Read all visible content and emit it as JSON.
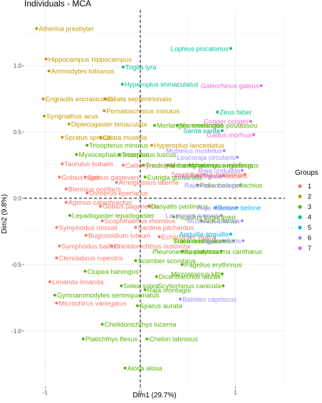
{
  "chart_data": {
    "type": "scatter",
    "title": "Individuals - MCA",
    "xlabel": "Dim1 (29.7%)",
    "ylabel": "Dim2 (9.8%)",
    "xlim": [
      -1.22,
      1.52
    ],
    "ylim": [
      -1.42,
      1.42
    ],
    "x_ticks": [
      -1,
      0,
      1
    ],
    "x_tick_labels": [
      "-1",
      "0",
      "1"
    ],
    "y_ticks": [
      -1.0,
      -0.5,
      0.0,
      0.5,
      1.0
    ],
    "y_tick_labels": [
      "-1.0",
      "-0.5",
      "0.0",
      "0.5",
      "1.0"
    ],
    "grid": true,
    "reference_lines": {
      "x": 0,
      "y": 0,
      "style": "dashed"
    },
    "legend": {
      "title": "Groups",
      "placement": "right",
      "entries": [
        {
          "name": "1",
          "color": "#F8766D"
        },
        {
          "name": "2",
          "color": "#C49A00"
        },
        {
          "name": "3",
          "color": "#53B400"
        },
        {
          "name": "4",
          "color": "#00C094"
        },
        {
          "name": "5",
          "color": "#00B6EB"
        },
        {
          "name": "6",
          "color": "#A58AFF"
        },
        {
          "name": "7",
          "color": "#FB61D7"
        }
      ]
    },
    "points": [
      {
        "label": "Atherina presbyter",
        "x": -1.09,
        "y": 1.28,
        "group": "2"
      },
      {
        "label": "Hippocampus hippocampus",
        "x": -0.99,
        "y": 1.05,
        "group": "2"
      },
      {
        "label": "Ammodytes tobianus",
        "x": -0.96,
        "y": 0.96,
        "group": "2"
      },
      {
        "label": "Triglia lyra",
        "x": -0.18,
        "y": 0.99,
        "group": "4"
      },
      {
        "label": "Hyperoplus immaculatus",
        "x": -0.19,
        "y": 0.86,
        "group": "4"
      },
      {
        "label": "Engraulis encrasicolus",
        "x": -1.02,
        "y": 0.75,
        "group": "2"
      },
      {
        "label": "Ciliata septentrionalis",
        "x": -0.37,
        "y": 0.75,
        "group": "2"
      },
      {
        "label": "Pomatoschistus minutus",
        "x": -0.38,
        "y": 0.66,
        "group": "2"
      },
      {
        "label": "Syngnathus acus",
        "x": -1.01,
        "y": 0.62,
        "group": "2"
      },
      {
        "label": "Diplecogaster bimaculata",
        "x": -0.75,
        "y": 0.56,
        "group": "2"
      },
      {
        "label": "Merlangius merlangus",
        "x": 0.15,
        "y": 0.55,
        "group": "3"
      },
      {
        "label": "Micromesistius poutassou",
        "x": 0.39,
        "y": 0.55,
        "group": "3"
      },
      {
        "label": "Spratus spratus",
        "x": -0.82,
        "y": 0.46,
        "group": "2"
      },
      {
        "label": "Ciliata mustela",
        "x": -0.42,
        "y": 0.46,
        "group": "2"
      },
      {
        "label": "Trisopterus minutus",
        "x": -0.56,
        "y": 0.4,
        "group": "3"
      },
      {
        "label": "Hyperoplus lanceolatus",
        "x": 0.12,
        "y": 0.4,
        "group": "2"
      },
      {
        "label": "Myxocephalus scorpius",
        "x": -0.67,
        "y": 0.33,
        "group": "3"
      },
      {
        "label": "Trisopterus luscus",
        "x": -0.22,
        "y": 0.33,
        "group": "3"
      },
      {
        "label": "Taurulus bubalis",
        "x": -0.82,
        "y": 0.26,
        "group": "1"
      },
      {
        "label": "Callionymus lyra",
        "x": -0.18,
        "y": 0.25,
        "group": "1"
      },
      {
        "label": "Trachurus trachurus",
        "x": 0.03,
        "y": 0.25,
        "group": "3"
      },
      {
        "label": "Melanogrammus aeglefinus",
        "x": 0.29,
        "y": 0.25,
        "group": "3"
      },
      {
        "label": "Merlangius merlangus",
        "x": 0.52,
        "y": 0.25,
        "group": "3"
      },
      {
        "label": "Gobius niger",
        "x": -0.85,
        "y": 0.16,
        "group": "1"
      },
      {
        "label": "Gobius gasteveni",
        "x": -0.58,
        "y": 0.16,
        "group": "1"
      },
      {
        "label": "Arnoglossus laterna",
        "x": -0.25,
        "y": 0.12,
        "group": "1"
      },
      {
        "label": "Eutrigla gurnardus",
        "x": 0.05,
        "y": 0.16,
        "group": "3"
      },
      {
        "label": "Blennius ocellaris",
        "x": -0.78,
        "y": 0.07,
        "group": "1"
      },
      {
        "label": "Osmerus eperlanus",
        "x": -0.56,
        "y": 0.04,
        "group": "1"
      },
      {
        "label": "Agonus cataphractus",
        "x": -0.78,
        "y": -0.03,
        "group": "1"
      },
      {
        "label": "Gobius paganellus",
        "x": -0.42,
        "y": -0.06,
        "group": "1"
      },
      {
        "label": "Dasyatis pastinaca",
        "x": 0.09,
        "y": -0.06,
        "group": "3"
      },
      {
        "label": "Lepadogaster lepadogaster",
        "x": -0.74,
        "y": -0.13,
        "group": "3"
      },
      {
        "label": "Scophthalmus rhombus",
        "x": -0.4,
        "y": -0.17,
        "group": "1"
      },
      {
        "label": "Pagellus bogaraveo",
        "x": 0.35,
        "y": -0.14,
        "group": "3"
      },
      {
        "label": "Symphodus roissali",
        "x": -0.88,
        "y": -0.22,
        "group": "1"
      },
      {
        "label": "Sardina pilchardus",
        "x": -0.05,
        "y": -0.22,
        "group": "1"
      },
      {
        "label": "Buglossidium luteum",
        "x": -0.57,
        "y": -0.28,
        "group": "1"
      },
      {
        "label": "Echiichthys vipera",
        "x": 0.2,
        "y": -0.29,
        "group": "1"
      },
      {
        "label": "Alosa fallax",
        "x": 0.64,
        "y": -0.17,
        "group": "3"
      },
      {
        "label": "Symphodus bailloni",
        "x": -0.85,
        "y": -0.36,
        "group": "1"
      },
      {
        "label": "Chelidonichthys lastoviza",
        "x": -0.3,
        "y": -0.36,
        "group": "1"
      },
      {
        "label": "Spondyliosoma cantharus",
        "x": 0.44,
        "y": -0.4,
        "group": "3"
      },
      {
        "label": "Pleuronectes platessa",
        "x": 0.85,
        "y": -0.4,
        "group": "3"
      },
      {
        "label": "Ctenolabrus rupestris",
        "x": -0.88,
        "y": -0.45,
        "group": "1"
      },
      {
        "label": "Scomber scombrus",
        "x": -0.05,
        "y": -0.47,
        "group": "3"
      },
      {
        "label": "Pagellus erythrinus",
        "x": 0.44,
        "y": -0.5,
        "group": "3"
      },
      {
        "label": "Clupea harengus",
        "x": -0.58,
        "y": -0.55,
        "group": "3"
      },
      {
        "label": "Microstomus kitt",
        "x": 0.86,
        "y": -0.57,
        "group": "3"
      },
      {
        "label": "Dicentrarchus labrax",
        "x": 0.17,
        "y": -0.59,
        "group": "3"
      },
      {
        "label": "Limanda limanda",
        "x": -0.95,
        "y": -0.63,
        "group": "1"
      },
      {
        "label": "Solea solea",
        "x": -0.2,
        "y": -0.66,
        "group": "3"
      },
      {
        "label": "Scyliorhinus canicula",
        "x": 0.87,
        "y": -0.66,
        "group": "3"
      },
      {
        "label": "Raja montagui",
        "x": 0.05,
        "y": -0.69,
        "group": "3"
      },
      {
        "label": "Gymnammodytes semisquamatus",
        "x": -0.9,
        "y": -0.73,
        "group": "3"
      },
      {
        "label": "Balistes capriscus",
        "x": 0.42,
        "y": -0.76,
        "group": "6"
      },
      {
        "label": "Microchirus variegatus",
        "x": -0.88,
        "y": -0.79,
        "group": "1"
      },
      {
        "label": "Sparus aurata",
        "x": -0.03,
        "y": -0.81,
        "group": "3"
      },
      {
        "label": "Chelidonichthys lucerna",
        "x": -0.4,
        "y": -0.95,
        "group": "3"
      },
      {
        "label": "Platichthys flesus",
        "x": -0.6,
        "y": -1.06,
        "group": "3"
      },
      {
        "label": "Chelon labrosus",
        "x": 0.07,
        "y": -1.06,
        "group": "3"
      },
      {
        "label": "Alosa alosa",
        "x": -0.16,
        "y": -1.28,
        "group": "3"
      },
      {
        "label": "Lophius piscatorius",
        "x": 0.95,
        "y": 1.13,
        "group": "4"
      },
      {
        "label": "Galeorhinus galeus",
        "x": 1.27,
        "y": 0.85,
        "group": "7"
      },
      {
        "label": "Zeus faber",
        "x": 0.81,
        "y": 0.65,
        "group": "4"
      },
      {
        "label": "Conger conger",
        "x": 1.16,
        "y": 0.58,
        "group": "7"
      },
      {
        "label": "Sarda sarda",
        "x": 0.86,
        "y": 0.51,
        "group": "4"
      },
      {
        "label": "Gadus morhua",
        "x": 1.19,
        "y": 0.48,
        "group": "7"
      },
      {
        "label": "Mustelus mustelus",
        "x": 0.88,
        "y": 0.36,
        "group": "6"
      },
      {
        "label": "Leucoraja circularis",
        "x": 1.02,
        "y": 0.31,
        "group": "6"
      },
      {
        "label": "Raja undulata",
        "x": 1.07,
        "y": 0.21,
        "group": "6"
      },
      {
        "label": "Pegusa lascaris",
        "x": 0.6,
        "y": 0.17,
        "group": "1"
      },
      {
        "label": "Raja brachyura",
        "x": 0.87,
        "y": 0.17,
        "group": "6"
      },
      {
        "label": "Scophthalmus maximus",
        "x": 1.1,
        "y": 0.18,
        "group": "1"
      },
      {
        "label": "Pollachius pollachius",
        "x": 0.6,
        "y": 0.1,
        "group": "3"
      },
      {
        "label": "Rajamicroocellata",
        "x": 1.05,
        "y": 0.1,
        "group": "6"
      },
      {
        "label": "Belone belone",
        "x": 0.79,
        "y": -0.07,
        "group": "5"
      },
      {
        "label": "Raja clavata",
        "x": 1.01,
        "y": -0.07,
        "group": "6"
      },
      {
        "label": "Leucoraja naevus",
        "x": 0.85,
        "y": -0.13,
        "group": "6"
      },
      {
        "label": "Mustelus asterias",
        "x": 1.07,
        "y": -0.17,
        "group": "6"
      },
      {
        "label": "Anguilla anguilla",
        "x": 0.95,
        "y": -0.27,
        "group": "5"
      },
      {
        "label": "Trachinus draco",
        "x": 0.88,
        "y": -0.32,
        "group": "3"
      },
      {
        "label": "Solea senegalensis",
        "x": 0.98,
        "y": -0.32,
        "group": "3"
      },
      {
        "label": "Raja stellaris",
        "x": 1.08,
        "y": -0.32,
        "group": "6"
      }
    ]
  }
}
